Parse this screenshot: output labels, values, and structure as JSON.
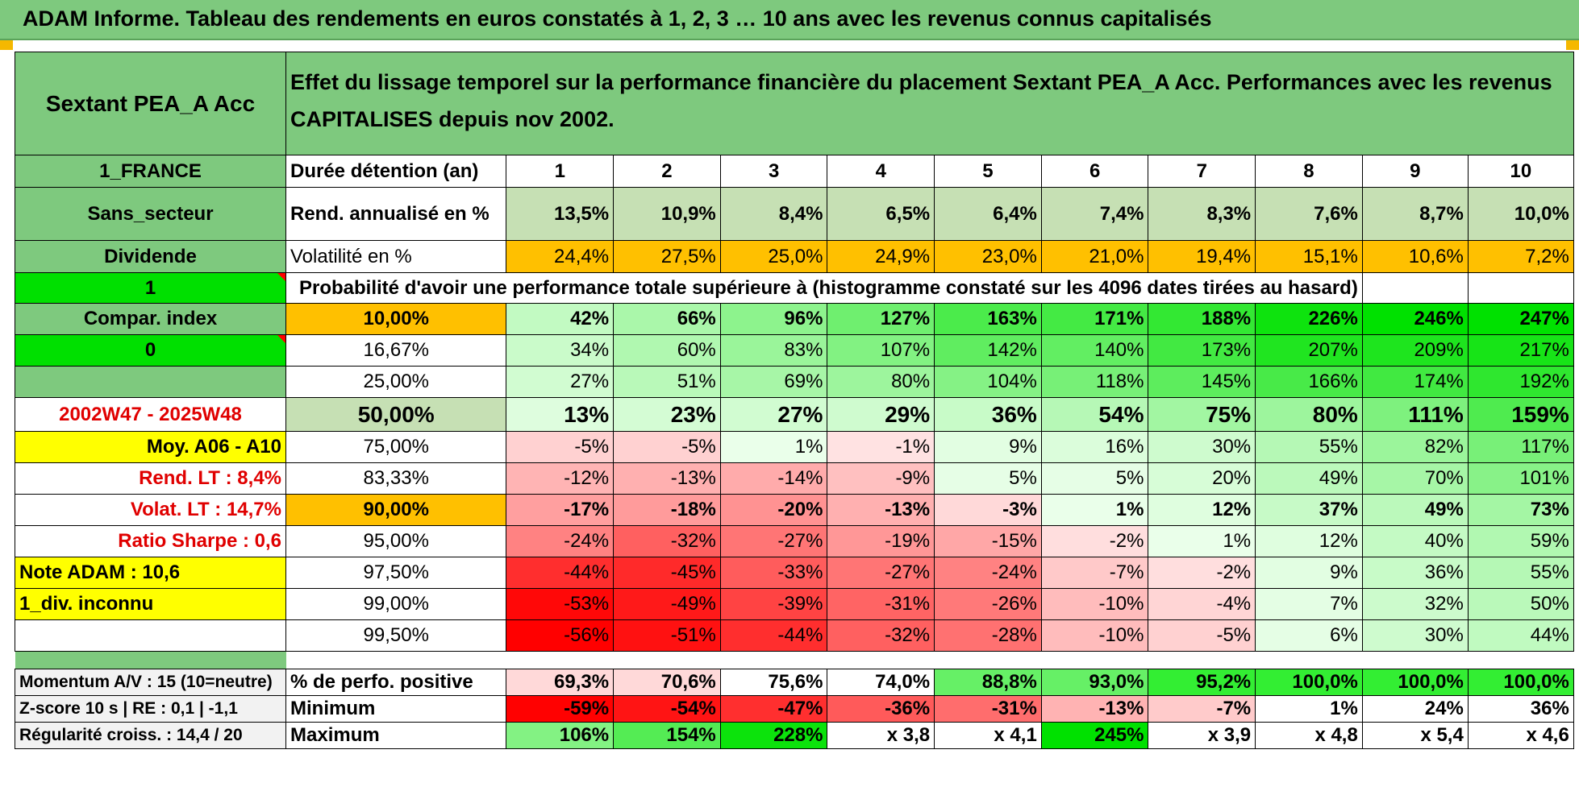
{
  "page_title": "ADAM Informe. Tableau des rendements en euros constatés à 1, 2, 3 … 10 ans avec les revenus connus capitalisés",
  "fund_name": "Sextant PEA_A Acc",
  "description": "Effet du lissage temporel sur la performance financière du placement Sextant PEA_A Acc. Performances avec les revenus CAPITALISES depuis nov 2002.",
  "left_labels": {
    "country": "1_FRANCE",
    "sector": "Sans_secteur",
    "dividend": "Dividende",
    "one": "1",
    "compar_index": "Compar. index",
    "zero": "0",
    "period": "2002W47 - 2025W48",
    "moy": "Moy. A06 - A10",
    "rend_lt": "Rend. LT :    8,4%",
    "volat_lt": "Volat. LT :    14,7%",
    "sharpe": "Ratio Sharpe :    0,6",
    "note": "Note ADAM : 10,6",
    "div": "1_div. inconnu",
    "momentum": "Momentum A/V : 15 (10=neutre)",
    "zscore": "Z-score 10 s | RE : 0,1 | -1,1",
    "regularite": "Régularité croiss. : 14,4 / 20"
  },
  "duration_label": "Durée détention (an)",
  "years": [
    "1",
    "2",
    "3",
    "4",
    "5",
    "6",
    "7",
    "8",
    "9",
    "10"
  ],
  "rend_label": "Rend. annualisé en %",
  "rend": [
    "13,5%",
    "10,9%",
    "8,4%",
    "6,5%",
    "6,4%",
    "7,4%",
    "8,3%",
    "7,6%",
    "8,7%",
    "10,0%"
  ],
  "vol_label": "Volatilité en %",
  "vol": [
    "24,4%",
    "27,5%",
    "25,0%",
    "24,9%",
    "23,0%",
    "21,0%",
    "19,4%",
    "15,1%",
    "10,6%",
    "7,2%"
  ],
  "prob_label": "Probabilité d'avoir une performance totale supérieure à (histogramme constaté sur les 4096 dates tirées au hasard)",
  "prob_rows": [
    {
      "p": "10,00%",
      "v": [
        "42%",
        "66%",
        "96%",
        "127%",
        "163%",
        "171%",
        "188%",
        "226%",
        "246%",
        "247%"
      ]
    },
    {
      "p": "16,67%",
      "v": [
        "34%",
        "60%",
        "83%",
        "107%",
        "142%",
        "140%",
        "173%",
        "207%",
        "209%",
        "217%"
      ]
    },
    {
      "p": "25,00%",
      "v": [
        "27%",
        "51%",
        "69%",
        "80%",
        "104%",
        "118%",
        "145%",
        "166%",
        "174%",
        "192%"
      ]
    },
    {
      "p": "50,00%",
      "v": [
        "13%",
        "23%",
        "27%",
        "29%",
        "36%",
        "54%",
        "75%",
        "80%",
        "111%",
        "159%"
      ]
    },
    {
      "p": "75,00%",
      "v": [
        "-5%",
        "-5%",
        "1%",
        "-1%",
        "9%",
        "16%",
        "30%",
        "55%",
        "82%",
        "117%"
      ]
    },
    {
      "p": "83,33%",
      "v": [
        "-12%",
        "-13%",
        "-14%",
        "-9%",
        "5%",
        "5%",
        "20%",
        "49%",
        "70%",
        "101%"
      ]
    },
    {
      "p": "90,00%",
      "v": [
        "-17%",
        "-18%",
        "-20%",
        "-13%",
        "-3%",
        "1%",
        "12%",
        "37%",
        "49%",
        "73%"
      ]
    },
    {
      "p": "95,00%",
      "v": [
        "-24%",
        "-32%",
        "-27%",
        "-19%",
        "-15%",
        "-2%",
        "1%",
        "12%",
        "40%",
        "59%"
      ]
    },
    {
      "p": "97,50%",
      "v": [
        "-44%",
        "-45%",
        "-33%",
        "-27%",
        "-24%",
        "-7%",
        "-2%",
        "9%",
        "36%",
        "55%"
      ]
    },
    {
      "p": "99,00%",
      "v": [
        "-53%",
        "-49%",
        "-39%",
        "-31%",
        "-26%",
        "-10%",
        "-4%",
        "7%",
        "32%",
        "50%"
      ]
    },
    {
      "p": "99,50%",
      "v": [
        "-56%",
        "-51%",
        "-44%",
        "-32%",
        "-28%",
        "-10%",
        "-5%",
        "6%",
        "30%",
        "44%"
      ]
    }
  ],
  "positive_label": "% de perfo. positive",
  "positive": [
    "69,3%",
    "70,6%",
    "75,6%",
    "74,0%",
    "88,8%",
    "93,0%",
    "95,2%",
    "100,0%",
    "100,0%",
    "100,0%"
  ],
  "min_label": "Minimum",
  "minimum": [
    "-59%",
    "-54%",
    "-47%",
    "-36%",
    "-31%",
    "-13%",
    "-7%",
    "1%",
    "24%",
    "36%"
  ],
  "max_label": "Maximum",
  "maximum": [
    "106%",
    "154%",
    "228%",
    "x 3,8",
    "x 4,1",
    "245%",
    "x 3,9",
    "x 4,8",
    "x 5,4",
    "x 4,6"
  ],
  "colors": {
    "header_green": "#7ec97e",
    "light_green": "#c6e0b4",
    "orange": "#ffc000",
    "bright_green": "#00e000",
    "yellow": "#ffff00",
    "red_text": "#e00000"
  }
}
